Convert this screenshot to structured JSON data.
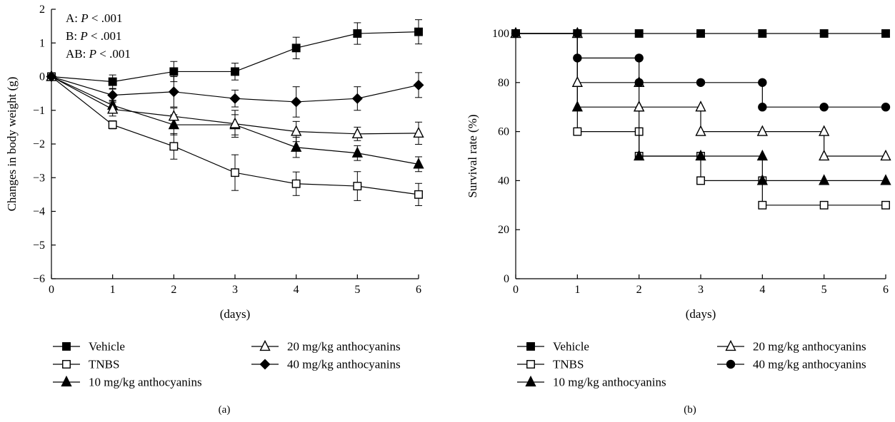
{
  "chart_data": [
    {
      "type": "line",
      "panel_label": "(a)",
      "title": "",
      "xlabel": "(days)",
      "ylabel": "Changes in body weight (g)",
      "xlim": [
        0,
        6
      ],
      "ylim": [
        -6,
        2
      ],
      "x_ticks": [
        0,
        1,
        2,
        3,
        4,
        5,
        6
      ],
      "y_ticks": [
        -6,
        -5,
        -4,
        -3,
        -2,
        -1,
        0,
        1,
        2
      ],
      "grid": false,
      "legend_position": "bottom",
      "annotations": [
        {
          "prefix": "A: ",
          "italic": "P",
          "suffix": " < .001"
        },
        {
          "prefix": "B: ",
          "italic": "P",
          "suffix": " < .001"
        },
        {
          "prefix": "AB: ",
          "italic": "P",
          "suffix": " < .001"
        }
      ],
      "x": [
        0,
        1,
        2,
        3,
        4,
        5,
        6
      ],
      "series": [
        {
          "name": "Vehicle",
          "marker": "square",
          "filled": true,
          "values": [
            0,
            -0.15,
            0.15,
            0.15,
            0.85,
            1.28,
            1.33
          ],
          "errors": [
            0,
            0.2,
            0.3,
            0.25,
            0.32,
            0.32,
            0.36
          ]
        },
        {
          "name": "TNBS",
          "marker": "square",
          "filled": false,
          "values": [
            0,
            -1.43,
            -2.07,
            -2.85,
            -3.18,
            -3.25,
            -3.5
          ],
          "errors": [
            0,
            0.12,
            0.38,
            0.53,
            0.35,
            0.43,
            0.33
          ]
        },
        {
          "name": "10 mg/kg anthocyanins",
          "marker": "triangle",
          "filled": true,
          "values": [
            0,
            -0.85,
            -1.43,
            -1.43,
            -2.1,
            -2.27,
            -2.6
          ],
          "errors": [
            0,
            0.15,
            0.3,
            0.3,
            0.3,
            0.22,
            0.22
          ]
        },
        {
          "name": "20 mg/kg anthocyanins",
          "marker": "triangle",
          "filled": false,
          "values": [
            0,
            -0.97,
            -1.18,
            -1.4,
            -1.63,
            -1.7,
            -1.68
          ],
          "errors": [
            0,
            0.2,
            0.25,
            0.4,
            0.3,
            0.2,
            0.33
          ]
        },
        {
          "name": "40 mg/kg anthocyanins",
          "marker": "diamond",
          "filled": true,
          "values": [
            0,
            -0.55,
            -0.45,
            -0.65,
            -0.75,
            -0.65,
            -0.25
          ],
          "errors": [
            0,
            0.18,
            0.45,
            0.25,
            0.45,
            0.35,
            0.37
          ]
        }
      ]
    },
    {
      "type": "line",
      "panel_label": "(b)",
      "title": "",
      "xlabel": "(days)",
      "ylabel": "Survival rate (%)",
      "xlim": [
        0,
        6
      ],
      "ylim": [
        0,
        100
      ],
      "x_ticks": [
        0,
        1,
        2,
        3,
        4,
        5,
        6
      ],
      "y_ticks": [
        0,
        20,
        40,
        60,
        80,
        100
      ],
      "grid": false,
      "legend_position": "bottom",
      "step": true,
      "x": [
        0,
        1,
        2,
        3,
        4,
        5,
        6
      ],
      "series": [
        {
          "name": "Vehicle",
          "marker": "square",
          "filled": true,
          "values": [
            100,
            100,
            100,
            100,
            100,
            100,
            100
          ]
        },
        {
          "name": "TNBS",
          "marker": "square",
          "filled": false,
          "values": [
            100,
            60,
            50,
            40,
            30,
            30,
            30
          ]
        },
        {
          "name": "10 mg/kg anthocyanins",
          "marker": "triangle",
          "filled": true,
          "values": [
            100,
            70,
            50,
            50,
            40,
            40,
            40
          ]
        },
        {
          "name": "20 mg/kg anthocyanins",
          "marker": "triangle",
          "filled": false,
          "values": [
            100,
            80,
            70,
            60,
            60,
            50,
            50
          ]
        },
        {
          "name": "40 mg/kg anthocyanins",
          "marker": "circle",
          "filled": true,
          "values": [
            100,
            90,
            80,
            80,
            70,
            70,
            70
          ]
        }
      ]
    }
  ]
}
